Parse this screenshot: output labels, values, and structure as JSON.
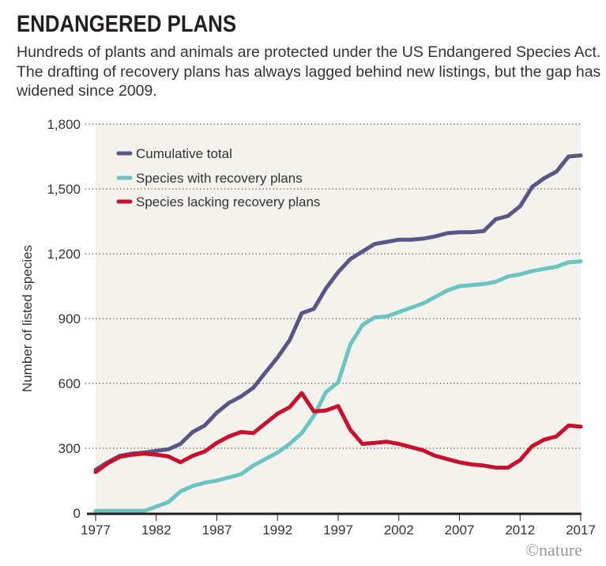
{
  "title": "ENDANGERED PLANS",
  "subtitle": "Hundreds of plants and animals are protected under the US Endangered Species Act. The drafting of recovery plans has always lagged behind new listings, but the gap has widened since 2009.",
  "credit": "©nature",
  "chart_data": {
    "type": "line",
    "title": "ENDANGERED PLANS",
    "xlabel": "",
    "ylabel": "Number of listed species",
    "xlim": [
      1977,
      2017
    ],
    "ylim": [
      0,
      1800
    ],
    "xticks": [
      1977,
      1982,
      1987,
      1992,
      1997,
      2002,
      2007,
      2012,
      2017
    ],
    "xtick_labels": [
      "1977",
      "1982",
      "1987",
      "1992",
      "1997",
      "2002",
      "2007",
      "2012",
      "2017"
    ],
    "yticks": [
      0,
      300,
      600,
      900,
      1200,
      1500,
      1800
    ],
    "ytick_labels": [
      "0",
      "300",
      "600",
      "900",
      "1,200",
      "1,500",
      "1,800"
    ],
    "grid": "horizontal-dotted",
    "legend_position": "top-left",
    "x": [
      1977,
      1978,
      1979,
      1980,
      1981,
      1982,
      1983,
      1984,
      1985,
      1986,
      1987,
      1988,
      1989,
      1990,
      1991,
      1992,
      1993,
      1994,
      1995,
      1996,
      1997,
      1998,
      1999,
      2000,
      2001,
      2002,
      2003,
      2004,
      2005,
      2006,
      2007,
      2008,
      2009,
      2010,
      2011,
      2012,
      2013,
      2014,
      2015,
      2016,
      2017
    ],
    "series": [
      {
        "name": "Cumulative total",
        "color": "#5a5587",
        "values": [
          200,
          235,
          265,
          275,
          280,
          288,
          295,
          320,
          375,
          405,
          465,
          510,
          540,
          580,
          650,
          720,
          800,
          925,
          945,
          1040,
          1115,
          1175,
          1210,
          1245,
          1255,
          1265,
          1265,
          1270,
          1280,
          1295,
          1300,
          1300,
          1305,
          1360,
          1375,
          1420,
          1510,
          1550,
          1580,
          1650,
          1655
        ]
      },
      {
        "name": "Species with recovery plans",
        "color": "#6cc4c1",
        "values": [
          10,
          10,
          10,
          10,
          10,
          30,
          50,
          100,
          125,
          140,
          150,
          165,
          180,
          220,
          250,
          280,
          320,
          370,
          450,
          560,
          605,
          780,
          870,
          905,
          910,
          930,
          950,
          970,
          1000,
          1030,
          1050,
          1055,
          1060,
          1070,
          1095,
          1105,
          1120,
          1130,
          1140,
          1160,
          1165
        ]
      },
      {
        "name": "Species lacking recovery plans",
        "color": "#c8102e",
        "values": [
          190,
          230,
          260,
          270,
          275,
          270,
          262,
          235,
          265,
          285,
          325,
          355,
          375,
          370,
          415,
          460,
          490,
          555,
          470,
          475,
          495,
          385,
          320,
          325,
          330,
          320,
          305,
          290,
          265,
          250,
          235,
          225,
          220,
          210,
          210,
          245,
          310,
          340,
          355,
          405,
          400
        ]
      }
    ]
  }
}
